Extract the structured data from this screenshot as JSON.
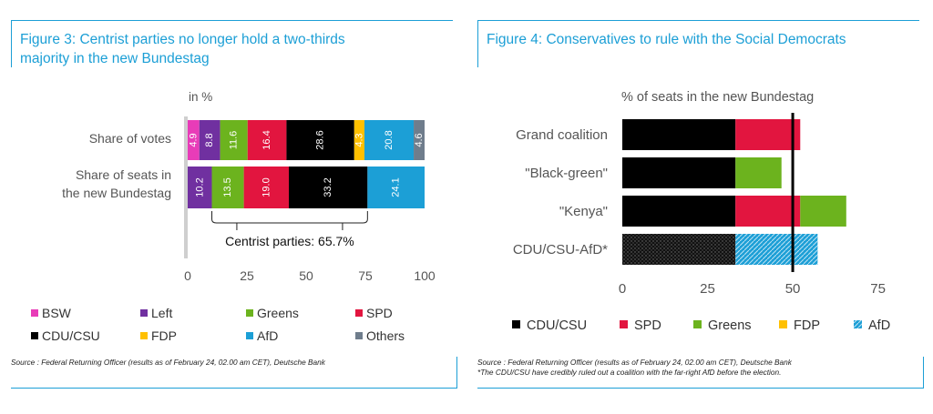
{
  "colors": {
    "accent": "#1c9fd6",
    "bsw": "#e83cb8",
    "left": "#7030a0",
    "greens": "#6cb31e",
    "spd": "#e2153f",
    "cdu": "#000000",
    "fdp": "#ffc000",
    "afd": "#1c9fd6",
    "others": "#6f7d8c"
  },
  "left_panel": {
    "title": "Figure 3: Centrist parties no longer hold a two-thirds\nmajority in the new Bundestag",
    "source": "Source : Federal Returning Officer (results as of February 24, 02.00 am CET), Deutsche Bank"
  },
  "right_panel": {
    "title": "Figure 4: Conservatives to rule with the Social Democrats",
    "source": "Source : Federal Returning Officer (results as of February 24, 02.00 am CET), Deutsche Bank",
    "note": "*The CDU/CSU have credibly ruled out a coalition with the far-right AfD before the election."
  },
  "chart_data": [
    {
      "type": "bar",
      "orientation": "horizontal",
      "stacked": true,
      "subtitle": "in %",
      "categories": [
        "Share of votes",
        "Share of seats in\nthe new Bundestag"
      ],
      "series": [
        {
          "name": "BSW",
          "color": "#e83cb8",
          "values": [
            4.9,
            0
          ]
        },
        {
          "name": "Left",
          "color": "#7030a0",
          "values": [
            8.8,
            10.2
          ]
        },
        {
          "name": "Greens",
          "color": "#6cb31e",
          "values": [
            11.6,
            13.5
          ]
        },
        {
          "name": "SPD",
          "color": "#e2153f",
          "values": [
            16.4,
            19.0
          ]
        },
        {
          "name": "CDU/CSU",
          "color": "#000000",
          "values": [
            28.6,
            33.2
          ]
        },
        {
          "name": "FDP",
          "color": "#ffc000",
          "values": [
            4.3,
            0
          ]
        },
        {
          "name": "AfD",
          "color": "#1c9fd6",
          "values": [
            20.8,
            24.1
          ]
        },
        {
          "name": "Others",
          "color": "#6f7d8c",
          "values": [
            4.6,
            0
          ]
        }
      ],
      "value_labels": [
        [
          "4.9",
          "8.8",
          "11.6",
          "16.4",
          "28.6",
          "4.3",
          "20.8",
          "4.6"
        ],
        [
          "",
          "10.2",
          "13.5",
          "19.0",
          "33.2",
          "",
          "24.1",
          ""
        ]
      ],
      "xlim": [
        0,
        100
      ],
      "xticks": [
        "0",
        "25",
        "50",
        "75",
        "100"
      ],
      "annotation": {
        "text": "Centrist parties: 65.7%",
        "from": 10.2,
        "to": 75.9
      },
      "legend": {
        "position": "bottom",
        "columns": 4
      }
    },
    {
      "type": "bar",
      "orientation": "horizontal",
      "stacked": true,
      "subtitle": "% of seats in the new Bundestag",
      "categories": [
        "Grand coalition",
        "\"Black-green\"",
        "\"Kenya\"",
        "CDU/CSU-AfD*"
      ],
      "series": [
        {
          "name": "CDU/CSU",
          "color": "#000000",
          "values": [
            33.2,
            33.2,
            33.2,
            33.2
          ]
        },
        {
          "name": "SPD",
          "color": "#e2153f",
          "values": [
            19.0,
            0,
            19.0,
            0
          ]
        },
        {
          "name": "Greens",
          "color": "#6cb31e",
          "values": [
            0,
            13.5,
            13.5,
            0
          ]
        },
        {
          "name": "FDP",
          "color": "#ffc000",
          "values": [
            0,
            0,
            0,
            0
          ]
        },
        {
          "name": "AfD",
          "color": "#1c9fd6",
          "values": [
            0,
            0,
            0,
            24.1
          ]
        }
      ],
      "hatched_category": "CDU/CSU-AfD*",
      "majority_line": 50,
      "xlim": [
        0,
        85
      ],
      "xticks": [
        "0",
        "25",
        "50",
        "75"
      ],
      "legend": {
        "position": "bottom",
        "columns": 5
      }
    }
  ]
}
